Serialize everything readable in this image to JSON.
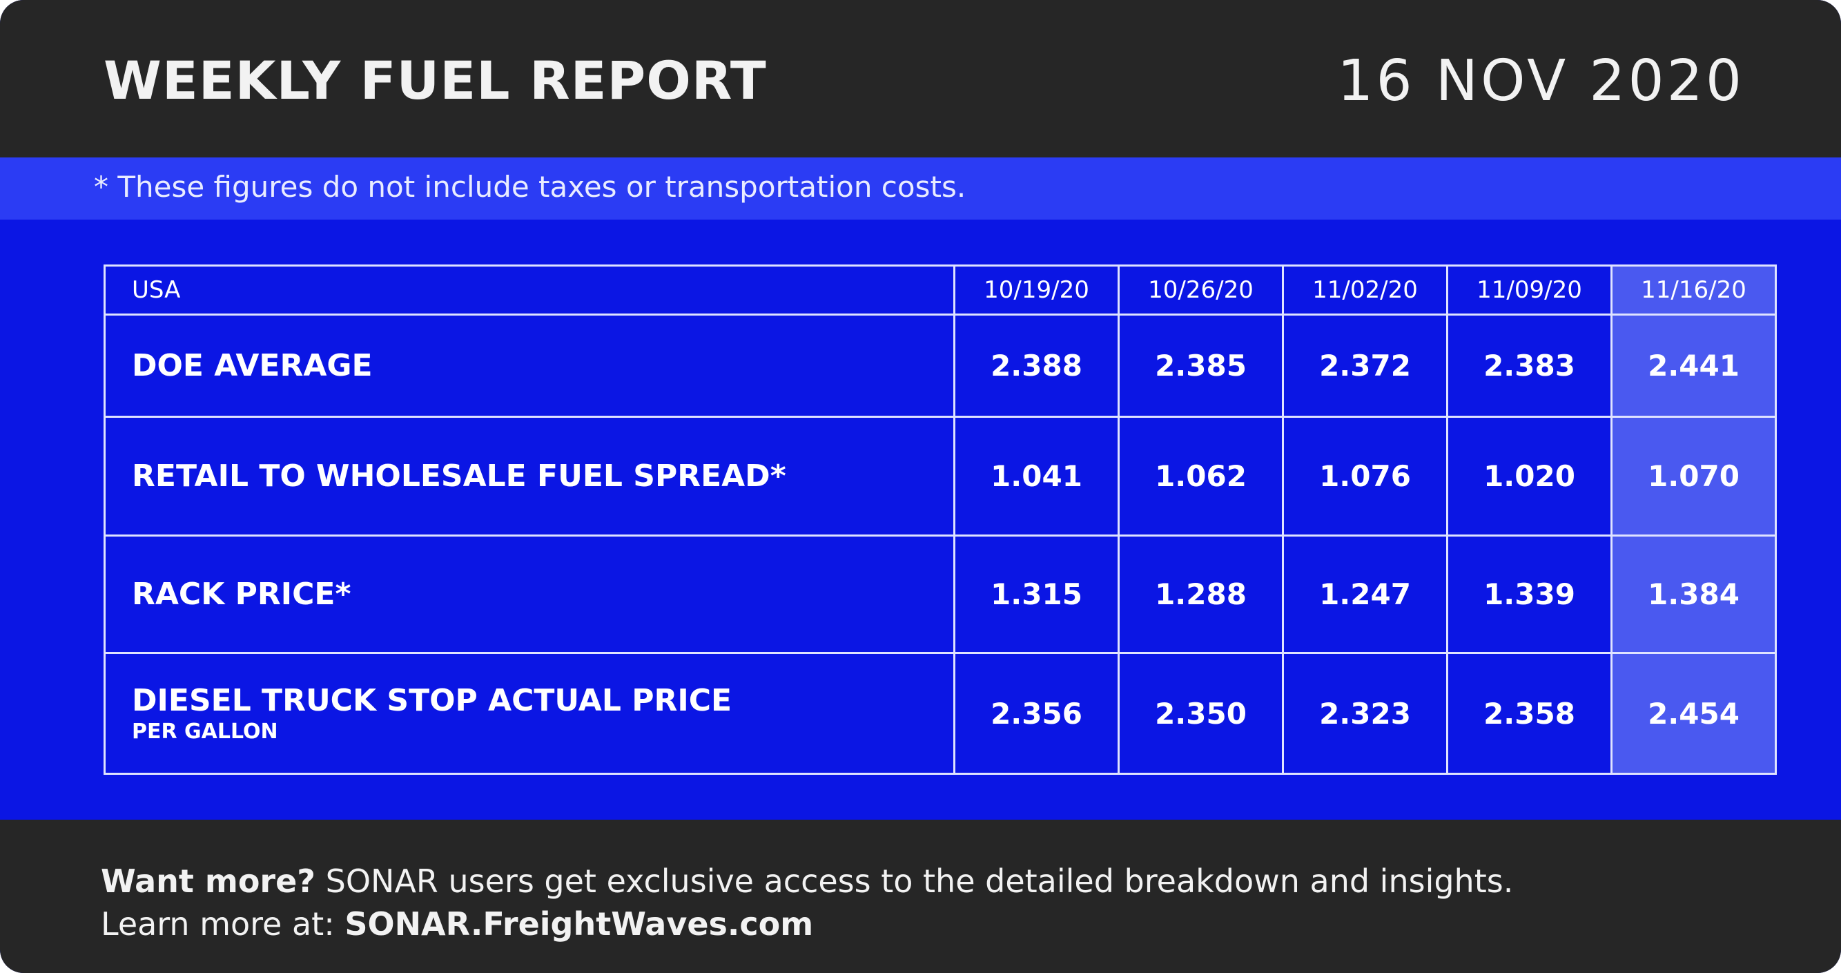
{
  "header": {
    "title": "WEEKLY FUEL REPORT",
    "date": "16 NOV 2020"
  },
  "note": "* These figures do not include taxes or transportation costs.",
  "table": {
    "columns": [
      "USA",
      "10/19/20",
      "10/26/20",
      "11/02/20",
      "11/09/20",
      "11/16/20"
    ],
    "rows": [
      {
        "label": "DOE AVERAGE",
        "values": [
          "2.388",
          "2.385",
          "2.372",
          "2.383",
          "2.441"
        ]
      },
      {
        "label": "RETAIL TO WHOLESALE FUEL SPREAD*",
        "values": [
          "1.041",
          "1.062",
          "1.076",
          "1.020",
          "1.070"
        ]
      },
      {
        "label": "RACK PRICE*",
        "values": [
          "1.315",
          "1.288",
          "1.247",
          "1.339",
          "1.384"
        ]
      },
      {
        "label": "DIESEL TRUCK STOP ACTUAL PRICE",
        "sublabel": "PER GALLON",
        "values": [
          "2.356",
          "2.350",
          "2.323",
          "2.358",
          "2.454"
        ]
      }
    ]
  },
  "footer": {
    "line1": {
      "bold": "Want more?",
      "text": "SONAR users get exclusive access to the detailed breakdown and insights."
    },
    "line2": {
      "text": "Learn more at:",
      "bold": "SONAR.FreightWaves.com"
    }
  }
}
